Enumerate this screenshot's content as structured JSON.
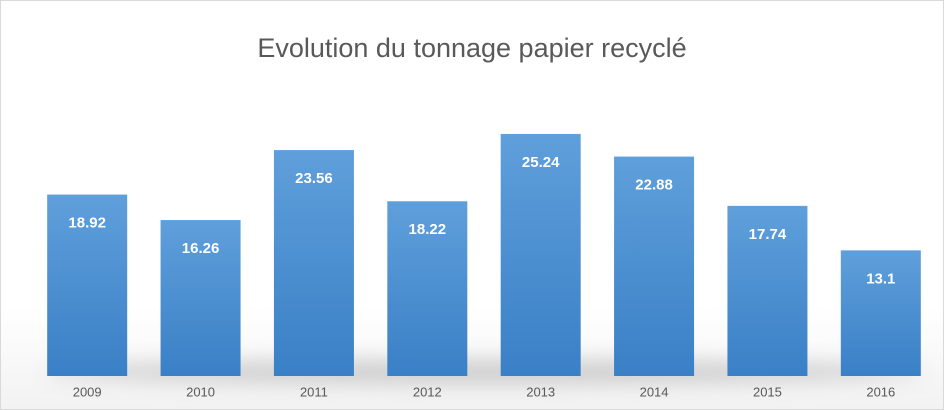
{
  "chart_data": {
    "type": "bar",
    "title": "Evolution du tonnage papier recyclé",
    "categories": [
      "2009",
      "2010",
      "2011",
      "2012",
      "2013",
      "2014",
      "2015",
      "2016"
    ],
    "values": [
      18.92,
      16.26,
      23.56,
      18.22,
      25.24,
      22.88,
      17.74,
      13.1
    ],
    "color": "#4a8ccf"
  }
}
